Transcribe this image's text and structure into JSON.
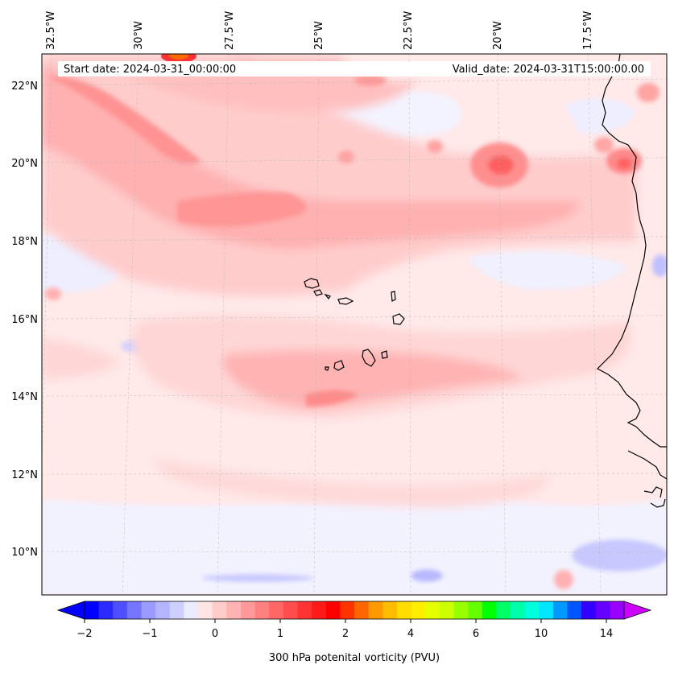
{
  "map": {
    "start_date_label": "Start date: 2024-03-31_00:00:00",
    "valid_date_label": "Valid_date: 2024-03-31T15:00:00.00",
    "lon_labels": [
      "32.5°W",
      "30°W",
      "27.5°W",
      "25°W",
      "22.5°W",
      "20°W",
      "17.5°W"
    ],
    "lat_labels": [
      "22°N",
      "20°N",
      "18°N",
      "16°N",
      "14°N",
      "12°N",
      "10°N"
    ]
  },
  "colorbar": {
    "label": "300 hPa potenital vorticity (PVU)",
    "tick_labels": [
      "−2",
      "−1",
      "0",
      "1",
      "2",
      "4",
      "6",
      "10",
      "14"
    ],
    "colors": [
      "#0000ff",
      "#2a2aff",
      "#4f4fff",
      "#7575ff",
      "#9a9aff",
      "#b4b4ff",
      "#cfcfff",
      "#ececff",
      "#ffe6e6",
      "#ffcccc",
      "#ffb3b3",
      "#ff9999",
      "#ff8080",
      "#ff6666",
      "#ff4d4d",
      "#ff3333",
      "#ff1a1a",
      "#ff0000",
      "#ff3300",
      "#ff6600",
      "#ff9900",
      "#ffbb00",
      "#ffdd00",
      "#ffee00",
      "#e6ff00",
      "#ccff00",
      "#99ff00",
      "#66ff00",
      "#00ff00",
      "#00ff66",
      "#00ffaa",
      "#00ffdd",
      "#00e6ff",
      "#0099ff",
      "#0055ff",
      "#3300ff",
      "#6600ff",
      "#9900ff"
    ],
    "under_color": "#0000ff",
    "over_color": "#cc00ff"
  }
}
